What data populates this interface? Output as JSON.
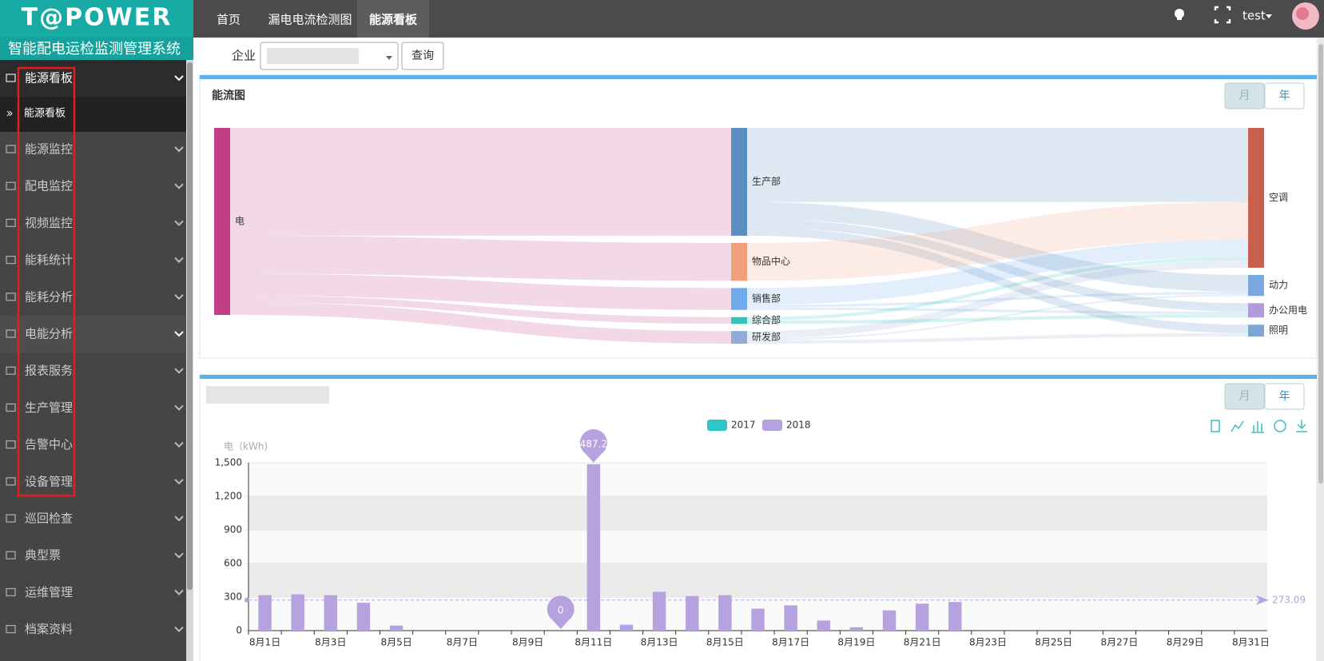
{
  "header": {
    "logo": "T@POWER",
    "nav": [
      "首页",
      "漏电电流检测图",
      "能源看板"
    ],
    "user": "test"
  },
  "sidebar": {
    "title": "智能配电运检监测管理系统",
    "menu": [
      "能源看板",
      "能源监控",
      "配电监控",
      "视频监控",
      "能耗统计",
      "能耗分析",
      "电能分析",
      "报表服务",
      "生产管理",
      "告警中心",
      "设备管理",
      "巡回检查",
      "典型票",
      "运维管理",
      "档案资料"
    ],
    "submenu": [
      "能源看板"
    ]
  },
  "filter": {
    "label": "企业",
    "button": "查询"
  },
  "sankey": {
    "title": "能流图",
    "toggles": [
      "月",
      "年"
    ],
    "nodes": [
      {
        "name": "电",
        "color": "#c23e85"
      },
      {
        "name": "生产部",
        "color": "#5b8ec0"
      },
      {
        "name": "物品中心",
        "color": "#f0a07c"
      },
      {
        "name": "销售部",
        "color": "#70aaea"
      },
      {
        "name": "综合部",
        "color": "#2fc3bb"
      },
      {
        "name": "研发部",
        "color": "#92a9d9"
      },
      {
        "name": "空调",
        "color": "#c9604f"
      },
      {
        "name": "动力",
        "color": "#7aa9e2"
      },
      {
        "name": "办公用电",
        "color": "#b39bdb"
      },
      {
        "name": "照明",
        "color": "#7ea6d2"
      }
    ],
    "links": [
      {
        "source": "电",
        "target": "生产部",
        "value": 128
      },
      {
        "source": "电",
        "target": "物品中心",
        "value": 45
      },
      {
        "source": "电",
        "target": "销售部",
        "value": 26
      },
      {
        "source": "电",
        "target": "综合部",
        "value": 8
      },
      {
        "source": "电",
        "target": "研发部",
        "value": 15
      },
      {
        "source": "生产部",
        "target": "空调",
        "value": 88
      },
      {
        "source": "生产部",
        "target": "动力",
        "value": 20
      },
      {
        "source": "生产部",
        "target": "办公用电",
        "value": 10
      },
      {
        "source": "生产部",
        "target": "照明",
        "value": 10
      },
      {
        "source": "物品中心",
        "target": "空调",
        "value": 45
      },
      {
        "source": "销售部",
        "target": "空调",
        "value": 20
      },
      {
        "source": "销售部",
        "target": "动力",
        "value": 3
      },
      {
        "source": "销售部",
        "target": "办公用电",
        "value": 3
      },
      {
        "source": "综合部",
        "target": "空调",
        "value": 4
      },
      {
        "source": "综合部",
        "target": "办公用电",
        "value": 4
      },
      {
        "source": "研发部",
        "target": "空调",
        "value": 9
      },
      {
        "source": "研发部",
        "target": "动力",
        "value": 2
      },
      {
        "source": "研发部",
        "target": "照明",
        "value": 4
      }
    ]
  },
  "chart_panel": {
    "toggles": [
      "月",
      "年"
    ]
  },
  "chart_data": {
    "type": "bar",
    "y_label": "电（kWh)",
    "categories": [
      "8月1日",
      null,
      "8月3日",
      null,
      "8月5日",
      null,
      "8月7日",
      null,
      "8月9日",
      null,
      "8月11日",
      null,
      "8月13日",
      null,
      "8月15日",
      null,
      "8月17日",
      null,
      "8月19日",
      null,
      "8月21日",
      null,
      "8月23日",
      null,
      "8月25日",
      null,
      "8月27日",
      null,
      "8月29日",
      null,
      "8月31日"
    ],
    "series": [
      {
        "name": "2017",
        "color": "#2ec7c9",
        "values": [
          null,
          null,
          null,
          null,
          null,
          null,
          null,
          null,
          null,
          null,
          null,
          null,
          null,
          null,
          null,
          null,
          null,
          null,
          null,
          null,
          null,
          null,
          null,
          null,
          null,
          null,
          null,
          null,
          null,
          null,
          null
        ]
      },
      {
        "name": "2018",
        "color": "#b6a2de",
        "values": [
          317,
          324,
          317,
          249,
          45,
          0,
          0,
          0,
          0,
          0,
          1487.25,
          53,
          347,
          309,
          317,
          196,
          226,
          90,
          30,
          181,
          241,
          256,
          0,
          0,
          0,
          0,
          0,
          0,
          0,
          0,
          0
        ]
      }
    ],
    "average": 273.09,
    "ylim": [
      0,
      1500
    ],
    "yticks": [
      0,
      300,
      600,
      900,
      {
        "value": 1200,
        "label": "1,200"
      },
      {
        "value": 1500,
        "label": "1,500"
      }
    ],
    "grid": true
  }
}
